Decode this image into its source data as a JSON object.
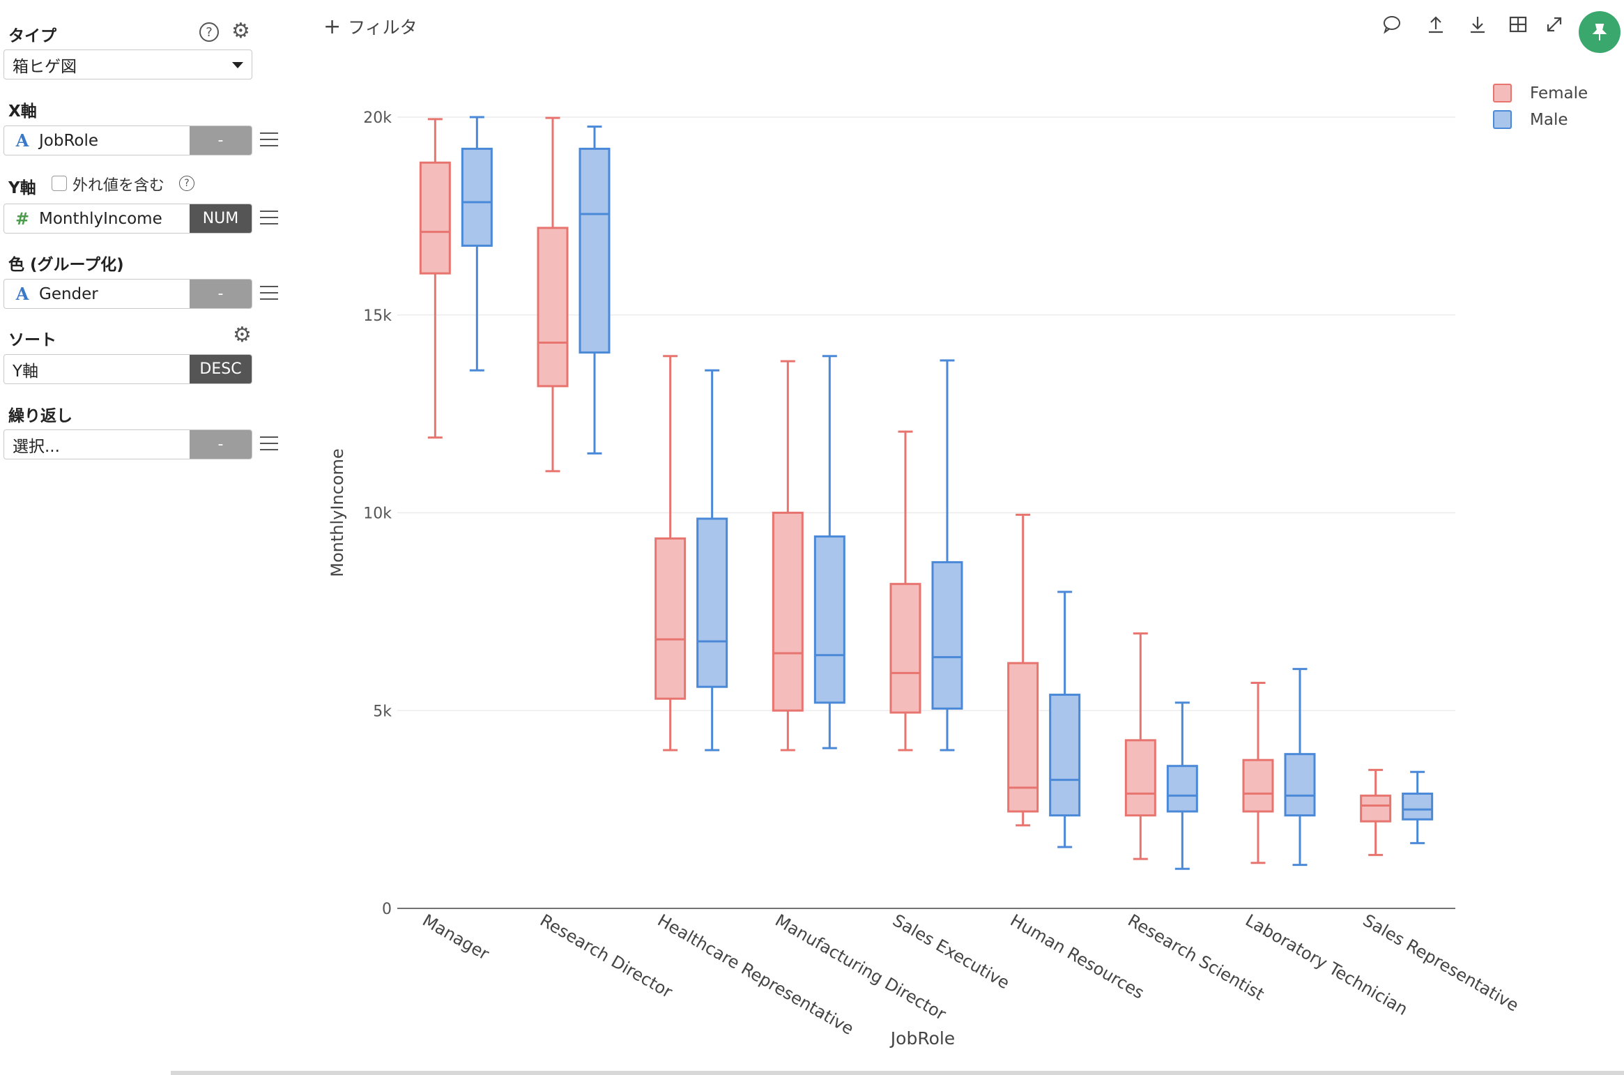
{
  "sidebar": {
    "type_label": "タイプ",
    "type_value": "箱ヒゲ図",
    "x_label": "X軸",
    "x_field": "JobRole",
    "x_btn": "-",
    "y_label": "Y軸",
    "outlier_label": "外れ値を含む",
    "y_field": "MonthlyIncome",
    "y_btn": "NUM",
    "color_label": "色 (グループ化)",
    "color_field": "Gender",
    "color_btn": "-",
    "sort_label": "ソート",
    "sort_field": "Y軸",
    "sort_btn": "DESC",
    "repeat_label": "繰り返し",
    "repeat_placeholder": "選択...",
    "repeat_btn": "-",
    "icons": [
      "help-icon",
      "gear-icon",
      "menu-icon",
      "dropdown-arrow-icon"
    ]
  },
  "toolbar": {
    "filter_label": "フィルタ",
    "icons": [
      "comment-icon",
      "upload-icon",
      "download-icon",
      "table-icon",
      "expand-icon",
      "pin-icon"
    ]
  },
  "colors": {
    "female_line": "#e8746f",
    "female_fill": "#f4bcbb",
    "male_line": "#4a88d8",
    "male_fill": "#a9c5ec",
    "grid": "#ececec",
    "pin": "#3aa76d"
  },
  "chart_data": {
    "type": "box",
    "xlabel": "JobRole",
    "ylabel": "MonthlyIncome",
    "ylim": [
      0,
      20000
    ],
    "yticks": [
      0,
      5000,
      10000,
      15000,
      20000
    ],
    "ytick_labels": [
      "0",
      "5k",
      "10k",
      "15k",
      "20k"
    ],
    "grid": true,
    "legend_position": "top-right",
    "categories": [
      "Manager",
      "Research Director",
      "Healthcare Representative",
      "Manufacturing Director",
      "Sales Executive",
      "Human Resources",
      "Research Scientist",
      "Laboratory Technician",
      "Sales Representative"
    ],
    "series": [
      {
        "name": "Female",
        "boxes": [
          {
            "min": 11900,
            "q1": 16050,
            "median": 17100,
            "q3": 18850,
            "max": 19950
          },
          {
            "min": 11050,
            "q1": 13200,
            "median": 14300,
            "q3": 17200,
            "max": 19980
          },
          {
            "min": 4000,
            "q1": 5300,
            "median": 6800,
            "q3": 9350,
            "max": 13960
          },
          {
            "min": 4000,
            "q1": 5000,
            "median": 6450,
            "q3": 10000,
            "max": 13830
          },
          {
            "min": 4000,
            "q1": 4950,
            "median": 5950,
            "q3": 8200,
            "max": 12050
          },
          {
            "min": 2100,
            "q1": 2450,
            "median": 3050,
            "q3": 6200,
            "max": 9950
          },
          {
            "min": 1250,
            "q1": 2350,
            "median": 2900,
            "q3": 4250,
            "max": 6950
          },
          {
            "min": 1150,
            "q1": 2450,
            "median": 2900,
            "q3": 3750,
            "max": 5700
          },
          {
            "min": 1350,
            "q1": 2200,
            "median": 2600,
            "q3": 2850,
            "max": 3500
          }
        ]
      },
      {
        "name": "Male",
        "boxes": [
          {
            "min": 13600,
            "q1": 16750,
            "median": 17850,
            "q3": 19200,
            "max": 20000
          },
          {
            "min": 11500,
            "q1": 14050,
            "median": 17550,
            "q3": 19200,
            "max": 19760
          },
          {
            "min": 4000,
            "q1": 5600,
            "median": 6750,
            "q3": 9850,
            "max": 13600
          },
          {
            "min": 4050,
            "q1": 5200,
            "median": 6400,
            "q3": 9400,
            "max": 13960
          },
          {
            "min": 4000,
            "q1": 5050,
            "median": 6350,
            "q3": 8750,
            "max": 13850
          },
          {
            "min": 1550,
            "q1": 2350,
            "median": 3250,
            "q3": 5400,
            "max": 8000
          },
          {
            "min": 1000,
            "q1": 2450,
            "median": 2850,
            "q3": 3600,
            "max": 5200
          },
          {
            "min": 1100,
            "q1": 2350,
            "median": 2850,
            "q3": 3900,
            "max": 6050
          },
          {
            "min": 1650,
            "q1": 2250,
            "median": 2500,
            "q3": 2900,
            "max": 3450
          }
        ]
      }
    ]
  }
}
